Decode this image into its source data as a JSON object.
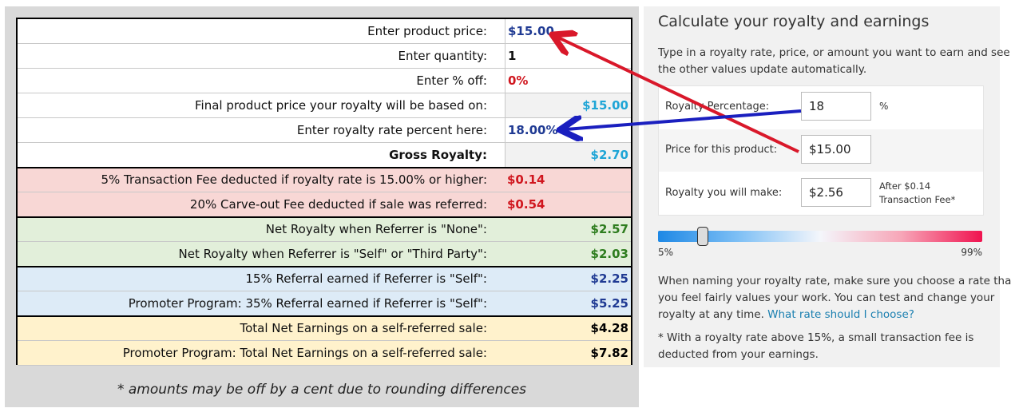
{
  "table": {
    "rows": [
      {
        "label": "Enter product price:",
        "value": "$15.00"
      },
      {
        "label": "Enter quantity:",
        "value": "1"
      },
      {
        "label": "Enter % off:",
        "value": "0%"
      },
      {
        "label": "Final product price your royalty will be based on:",
        "value": "$15.00"
      },
      {
        "label": "Enter royalty rate percent here:",
        "value": "18.00%"
      },
      {
        "label": "Gross Royalty:",
        "value": "$2.70"
      },
      {
        "label": "5% Transaction Fee deducted if royalty rate is 15.00% or higher:",
        "value": "$0.14"
      },
      {
        "label": "20% Carve-out Fee deducted if sale was referred:",
        "value": "$0.54"
      },
      {
        "label": "Net Royalty when Referrer is \"None\":",
        "value": "$2.57"
      },
      {
        "label": "Net Royalty when Referrer is \"Self\" or \"Third Party\":",
        "value": "$2.03"
      },
      {
        "label": "15% Referral earned if Referrer is \"Self\":",
        "value": "$2.25"
      },
      {
        "label": "Promoter Program: 35% Referral earned if Referrer is \"Self\":",
        "value": "$5.25"
      },
      {
        "label": "Total Net Earnings on a self-referred sale:",
        "value": "$4.28"
      },
      {
        "label": "Promoter Program: Total Net Earnings on a self-referred sale:",
        "value": "$7.82"
      }
    ]
  },
  "footnote": "* amounts may be off by a cent due to rounding differences",
  "calculator": {
    "title": "Calculate your royalty and earnings",
    "description": [
      "Type in a royalty rate, price, or amount you want to earn and see",
      "the other values update automatically."
    ],
    "fields": [
      {
        "label": "Royalty Percentage:",
        "value": "18",
        "unit": "%"
      },
      {
        "label": "Price for this product:",
        "value": "$15.00"
      },
      {
        "label": "Royalty you will make:",
        "value": "$2.56",
        "note": [
          "After $0.14",
          "Transaction Fee*"
        ]
      }
    ],
    "slider": {
      "min_label": "5%",
      "max_label": "99%"
    },
    "help_lines": [
      "When naming your royalty rate, make sure you choose a rate that",
      "you feel fairly values your work. You can test and change your",
      "royalty at any time."
    ],
    "help_link": "What rate should I choose?",
    "note_lines": [
      "* With a royalty rate above 15%, a small transaction fee is",
      "deducted from your earnings."
    ]
  }
}
